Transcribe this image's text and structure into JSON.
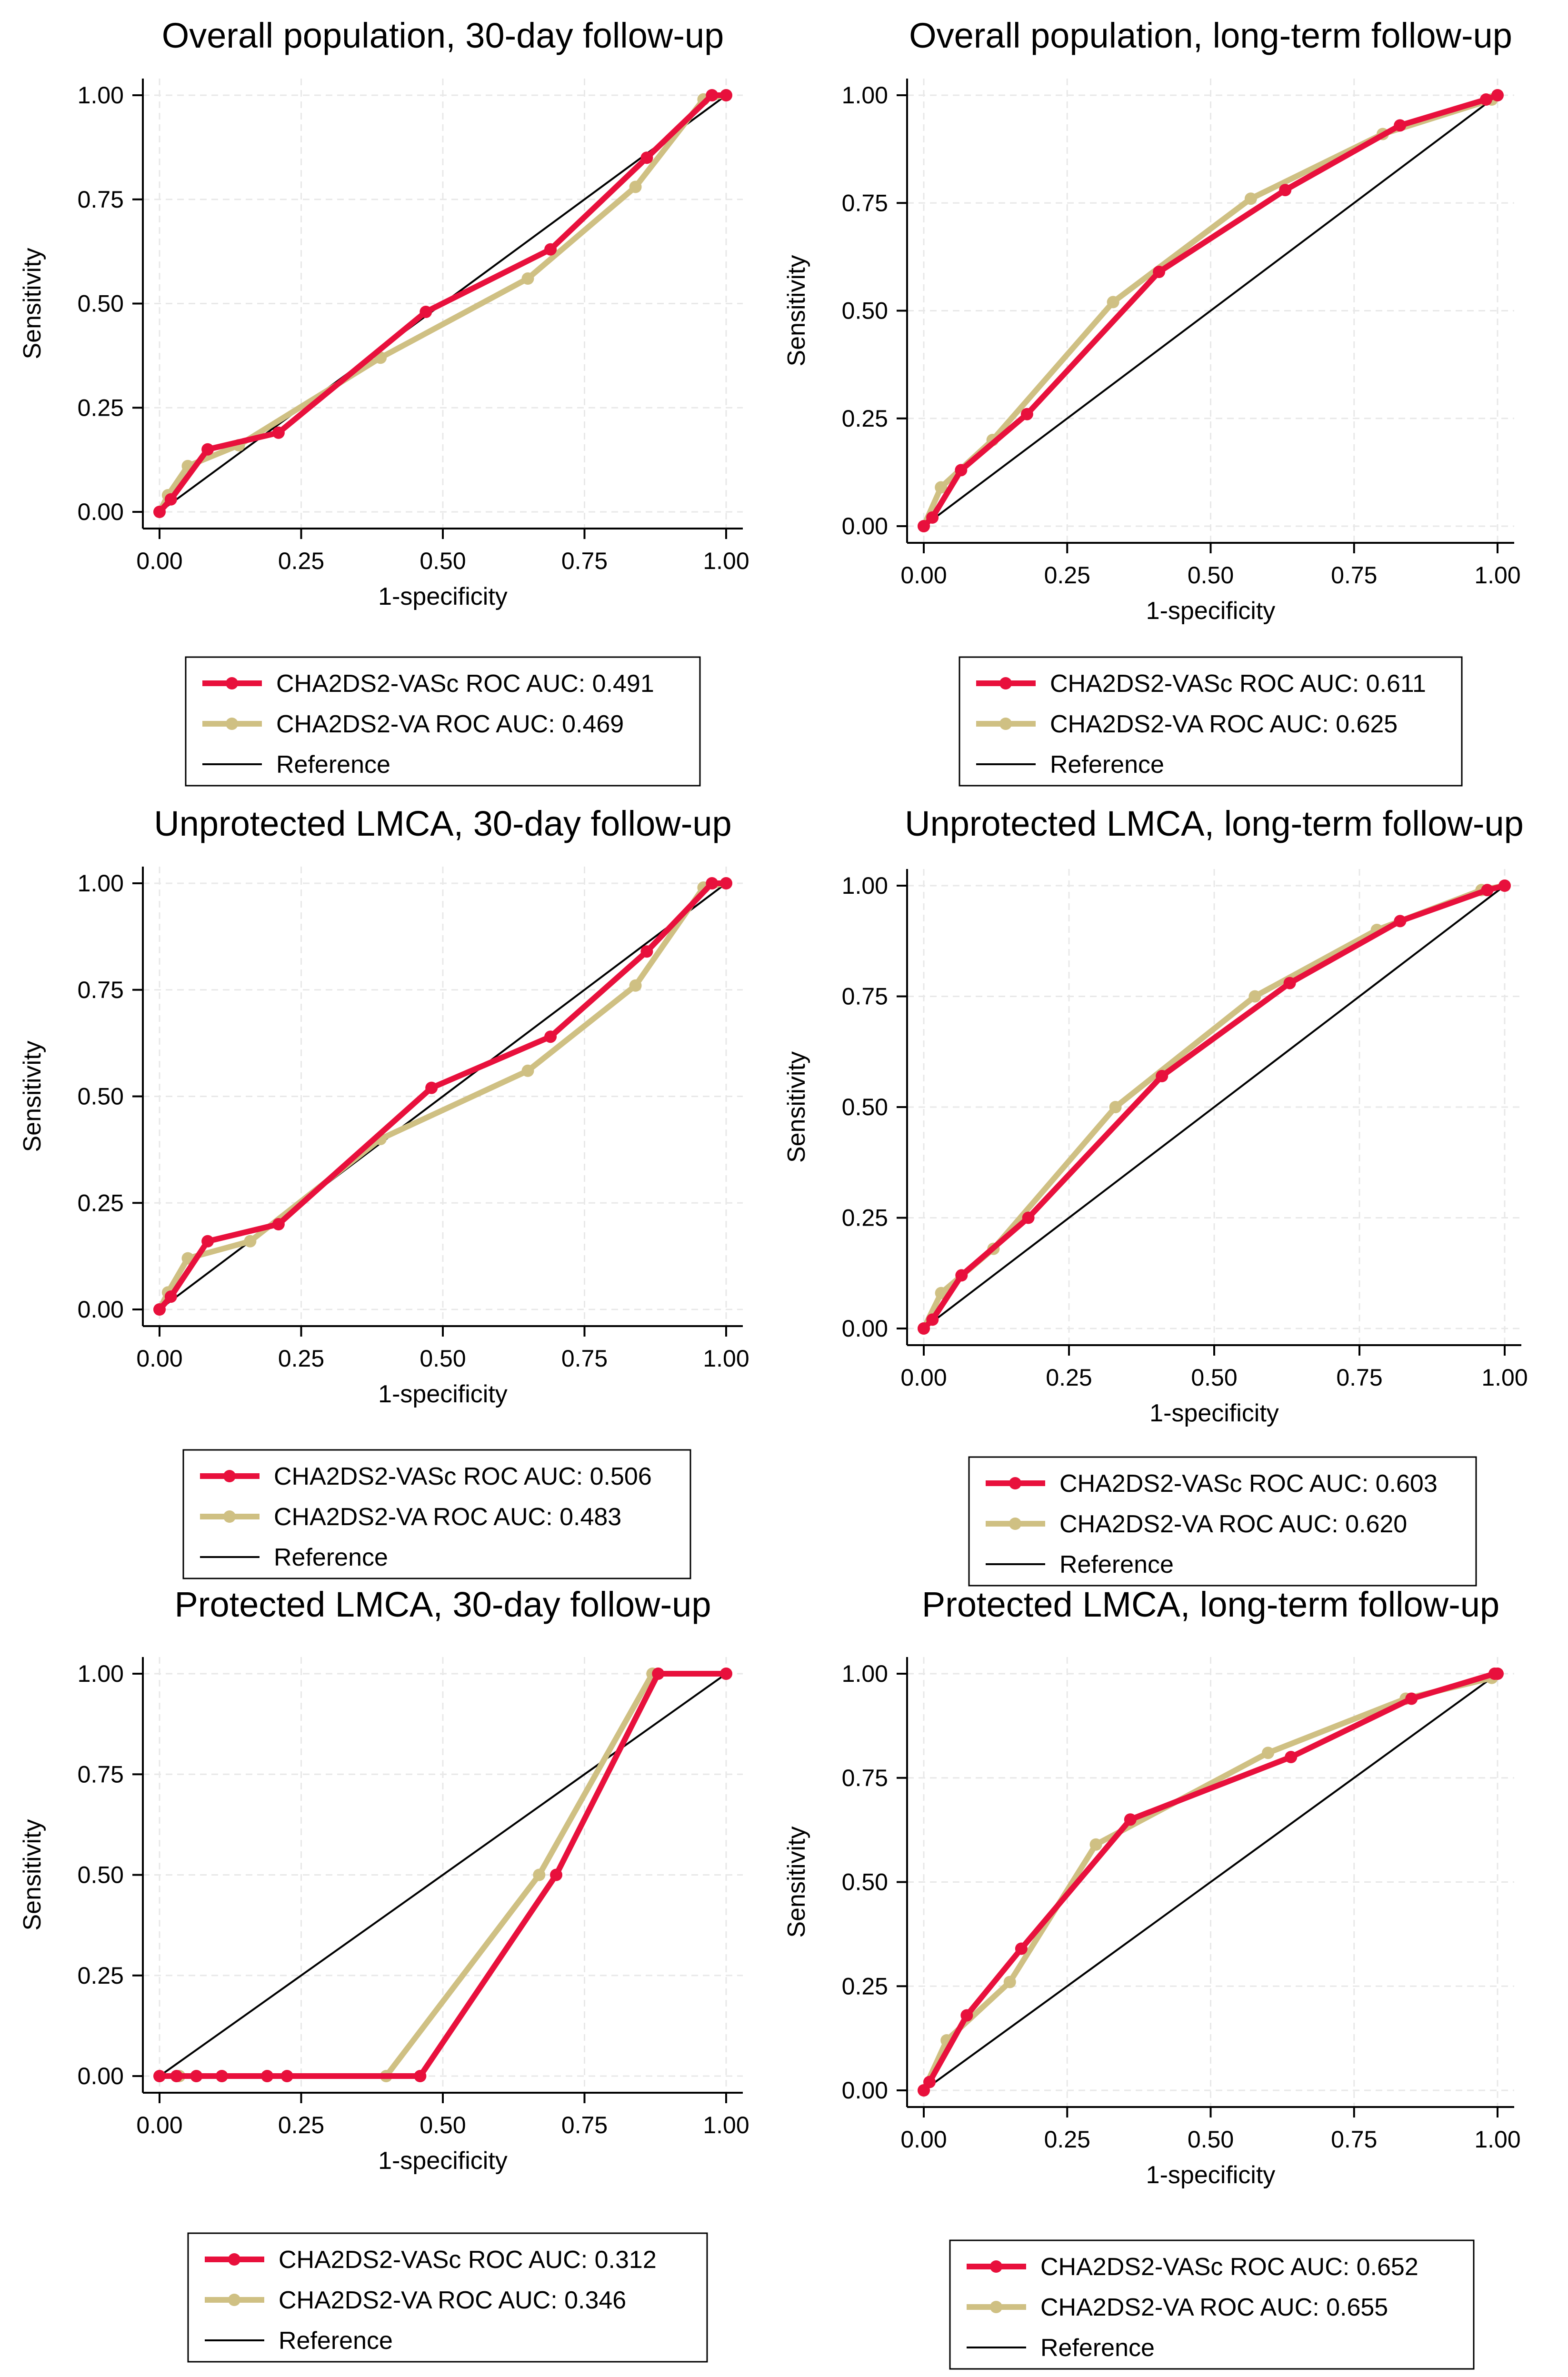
{
  "figure": {
    "colors": {
      "vasc": "#e8103c",
      "va": "#cfc083",
      "reference": "#000000",
      "grid": "#e8e8e8"
    }
  },
  "chart_data": [
    {
      "type": "line",
      "title": "Overall population, 30-day follow-up",
      "xlabel": "1-specificity",
      "ylabel": "Sensitivity",
      "xlim": [
        0,
        1
      ],
      "ylim": [
        0,
        1
      ],
      "xticks": [
        "0.00",
        "0.25",
        "0.50",
        "0.75",
        "1.00"
      ],
      "yticks": [
        "0.00",
        "0.25",
        "0.50",
        "0.75",
        "1.00"
      ],
      "grid": true,
      "legend_position": "below",
      "series": [
        {
          "name": "CHA2DS2-VASc ROC AUC: 0.491",
          "x": [
            0,
            0.02,
            0.085,
            0.21,
            0.47,
            0.69,
            0.86,
            0.975,
            1.0
          ],
          "y": [
            0,
            0.03,
            0.15,
            0.19,
            0.48,
            0.63,
            0.85,
            1.0,
            1.0
          ]
        },
        {
          "name": "CHA2DS2-VA ROC AUC: 0.469",
          "x": [
            0,
            0.015,
            0.05,
            0.14,
            0.39,
            0.65,
            0.84,
            0.96,
            1.0
          ],
          "y": [
            0,
            0.04,
            0.11,
            0.16,
            0.37,
            0.56,
            0.78,
            0.99,
            1.0
          ]
        },
        {
          "name": "Reference",
          "x": [
            0,
            1
          ],
          "y": [
            0,
            1
          ]
        }
      ]
    },
    {
      "type": "line",
      "title": "Overall population, long-term follow-up",
      "xlabel": "1-specificity",
      "ylabel": "Sensitivity",
      "xlim": [
        0,
        1
      ],
      "ylim": [
        0,
        1
      ],
      "xticks": [
        "0.00",
        "0.25",
        "0.50",
        "0.75",
        "1.00"
      ],
      "yticks": [
        "0.00",
        "0.25",
        "0.50",
        "0.75",
        "1.00"
      ],
      "grid": true,
      "legend_position": "below",
      "series": [
        {
          "name": "CHA2DS2-VASc ROC AUC: 0.611",
          "x": [
            0,
            0.015,
            0.065,
            0.18,
            0.41,
            0.63,
            0.83,
            0.98,
            1.0
          ],
          "y": [
            0,
            0.02,
            0.13,
            0.26,
            0.59,
            0.78,
            0.93,
            0.99,
            1.0
          ]
        },
        {
          "name": "CHA2DS2-VA ROC AUC: 0.625",
          "x": [
            0,
            0.03,
            0.12,
            0.33,
            0.57,
            0.8,
            0.99,
            1.0
          ],
          "y": [
            0,
            0.09,
            0.2,
            0.52,
            0.76,
            0.91,
            0.99,
            1.0
          ]
        },
        {
          "name": "Reference",
          "x": [
            0,
            1
          ],
          "y": [
            0,
            1
          ]
        }
      ]
    },
    {
      "type": "line",
      "title": "Unprotected LMCA, 30-day follow-up",
      "xlabel": "1-specificity",
      "ylabel": "Sensitivity",
      "xlim": [
        0,
        1
      ],
      "ylim": [
        0,
        1
      ],
      "xticks": [
        "0.00",
        "0.25",
        "0.50",
        "0.75",
        "1.00"
      ],
      "yticks": [
        "0.00",
        "0.25",
        "0.50",
        "0.75",
        "1.00"
      ],
      "grid": true,
      "legend_position": "below",
      "series": [
        {
          "name": "CHA2DS2-VASc ROC AUC: 0.506",
          "x": [
            0,
            0.02,
            0.085,
            0.21,
            0.48,
            0.69,
            0.86,
            0.975,
            1.0
          ],
          "y": [
            0,
            0.03,
            0.16,
            0.2,
            0.52,
            0.64,
            0.84,
            1.0,
            1.0
          ]
        },
        {
          "name": "CHA2DS2-VA ROC AUC: 0.483",
          "x": [
            0,
            0.015,
            0.05,
            0.16,
            0.39,
            0.65,
            0.84,
            0.96,
            1.0
          ],
          "y": [
            0,
            0.04,
            0.12,
            0.16,
            0.4,
            0.56,
            0.76,
            0.99,
            1.0
          ]
        },
        {
          "name": "Reference",
          "x": [
            0,
            1
          ],
          "y": [
            0,
            1
          ]
        }
      ]
    },
    {
      "type": "line",
      "title": "Unprotected LMCA, long-term follow-up",
      "xlabel": "1-specificity",
      "ylabel": "Sensitivity",
      "xlim": [
        0,
        1
      ],
      "ylim": [
        0,
        1
      ],
      "xticks": [
        "0.00",
        "0.25",
        "0.50",
        "0.75",
        "1.00"
      ],
      "yticks": [
        "0.00",
        "0.25",
        "0.50",
        "0.75",
        "1.00"
      ],
      "grid": true,
      "legend_position": "below",
      "series": [
        {
          "name": "CHA2DS2-VASc ROC AUC: 0.603",
          "x": [
            0,
            0.015,
            0.065,
            0.18,
            0.41,
            0.63,
            0.82,
            0.97,
            1.0
          ],
          "y": [
            0,
            0.02,
            0.12,
            0.25,
            0.57,
            0.78,
            0.92,
            0.99,
            1.0
          ]
        },
        {
          "name": "CHA2DS2-VA ROC AUC: 0.620",
          "x": [
            0,
            0.03,
            0.12,
            0.33,
            0.57,
            0.78,
            0.96,
            1.0
          ],
          "y": [
            0,
            0.08,
            0.18,
            0.5,
            0.75,
            0.9,
            0.99,
            1.0
          ]
        },
        {
          "name": "Reference",
          "x": [
            0,
            1
          ],
          "y": [
            0,
            1
          ]
        }
      ]
    },
    {
      "type": "line",
      "title": "Protected LMCA, 30-day follow-up",
      "xlabel": "1-specificity",
      "ylabel": "Sensitivity",
      "xlim": [
        0,
        1
      ],
      "ylim": [
        0,
        1
      ],
      "xticks": [
        "0.00",
        "0.25",
        "0.50",
        "0.75",
        "1.00"
      ],
      "yticks": [
        "0.00",
        "0.25",
        "0.50",
        "0.75",
        "1.00"
      ],
      "grid": true,
      "legend_position": "below",
      "series": [
        {
          "name": "CHA2DS2-VASc ROC AUC: 0.312",
          "x": [
            0,
            0.03,
            0.065,
            0.11,
            0.19,
            0.225,
            0.46,
            0.7,
            0.88,
            1.0
          ],
          "y": [
            0,
            0,
            0,
            0,
            0,
            0,
            0,
            0.5,
            1.0,
            1.0
          ]
        },
        {
          "name": "CHA2DS2-VA ROC AUC: 0.346",
          "x": [
            0,
            0.035,
            0.065,
            0.11,
            0.19,
            0.4,
            0.67,
            0.87,
            1.0
          ],
          "y": [
            0,
            0,
            0,
            0,
            0,
            0,
            0.5,
            1.0,
            1.0
          ]
        },
        {
          "name": "Reference",
          "x": [
            0,
            1
          ],
          "y": [
            0,
            1
          ]
        }
      ]
    },
    {
      "type": "line",
      "title": "Protected LMCA, long-term follow-up",
      "xlabel": "1-specificity",
      "ylabel": "Sensitivity",
      "xlim": [
        0,
        1
      ],
      "ylim": [
        0,
        1
      ],
      "xticks": [
        "0.00",
        "0.25",
        "0.50",
        "0.75",
        "1.00"
      ],
      "yticks": [
        "0.00",
        "0.25",
        "0.50",
        "0.75",
        "1.00"
      ],
      "grid": true,
      "legend_position": "below",
      "series": [
        {
          "name": "CHA2DS2-VASc ROC AUC: 0.652",
          "x": [
            0,
            0.01,
            0.075,
            0.17,
            0.36,
            0.64,
            0.85,
            0.995,
            1.0
          ],
          "y": [
            0,
            0.02,
            0.18,
            0.34,
            0.65,
            0.8,
            0.94,
            1.0,
            1.0
          ]
        },
        {
          "name": "CHA2DS2-VA ROC AUC: 0.655",
          "x": [
            0,
            0.04,
            0.15,
            0.3,
            0.6,
            0.84,
            0.99,
            1.0
          ],
          "y": [
            0,
            0.12,
            0.26,
            0.59,
            0.81,
            0.94,
            0.99,
            1.0
          ]
        },
        {
          "name": "Reference",
          "x": [
            0,
            1
          ],
          "y": [
            0,
            1
          ]
        }
      ]
    }
  ]
}
